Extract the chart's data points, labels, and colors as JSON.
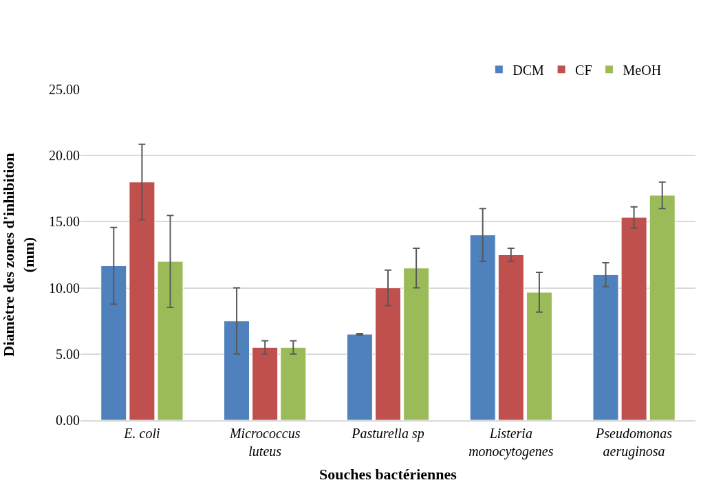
{
  "chart_data": {
    "type": "bar",
    "xlabel": "Souches bactériennes",
    "ylabel": "Diamètre des zones d'inhibition (mm)",
    "categories": [
      "E. coli",
      "Micrococcus luteus",
      "Pasturella sp",
      "Listeria monocytogenes",
      "Pseudomonas aeruginosa"
    ],
    "series": [
      {
        "name": "DCM",
        "color": "#4f81bd",
        "values": [
          11.67,
          7.5,
          6.5,
          14.0,
          11.0
        ],
        "errors": [
          2.9,
          2.5,
          0.05,
          2.0,
          0.9
        ]
      },
      {
        "name": "CF",
        "color": "#c0504d",
        "values": [
          18.0,
          5.5,
          10.0,
          12.5,
          15.33
        ],
        "errors": [
          2.85,
          0.5,
          1.35,
          0.5,
          0.8
        ]
      },
      {
        "name": "MeOH",
        "color": "#9bbb59",
        "values": [
          12.0,
          5.5,
          11.5,
          9.67,
          17.0
        ],
        "errors": [
          3.47,
          0.5,
          1.5,
          1.5,
          1.0
        ]
      }
    ],
    "ylim": [
      0,
      25
    ],
    "yticks": [
      {
        "value": 0,
        "label": "0.00"
      },
      {
        "value": 5,
        "label": "5.00"
      },
      {
        "value": 10,
        "label": "10.00"
      },
      {
        "value": 15,
        "label": "15.00"
      },
      {
        "value": 20,
        "label": "20.00"
      },
      {
        "value": 25,
        "label": "25.00"
      }
    ],
    "grid": "y",
    "legend": "top right"
  }
}
